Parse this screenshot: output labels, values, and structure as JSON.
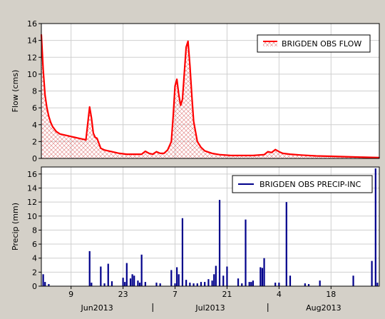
{
  "chart_data": [
    {
      "type": "area",
      "ylabel": "Flow (cms)",
      "ylim": [
        0,
        16
      ],
      "yticks": [
        0,
        2,
        4,
        6,
        8,
        10,
        12,
        14,
        16
      ],
      "legend": "top-right",
      "grid": true,
      "series": [
        {
          "name": "BRIGDEN OBS FLOW",
          "color": "#ff0000",
          "fill_pattern": "crosshatch",
          "x": [
            "2013-06-01",
            "2013-06-01T12:00",
            "2013-06-02",
            "2013-06-02T12:00",
            "2013-06-03",
            "2013-06-03T12:00",
            "2013-06-04",
            "2013-06-05",
            "2013-06-06",
            "2013-06-07",
            "2013-06-08",
            "2013-06-09",
            "2013-06-10",
            "2013-06-11",
            "2013-06-12",
            "2013-06-13",
            "2013-06-14",
            "2013-06-14T12:00",
            "2013-06-15",
            "2013-06-15T12:00",
            "2013-06-16",
            "2013-06-17",
            "2013-06-18",
            "2013-06-19",
            "2013-06-20",
            "2013-06-22",
            "2013-06-24",
            "2013-06-26",
            "2013-06-28",
            "2013-06-29",
            "2013-06-30",
            "2013-07-01",
            "2013-07-02",
            "2013-07-03",
            "2013-07-04",
            "2013-07-05",
            "2013-07-06",
            "2013-07-06T12:00",
            "2013-07-07",
            "2013-07-07T12:00",
            "2013-07-08",
            "2013-07-08T12:00",
            "2013-07-09",
            "2013-07-10",
            "2013-07-10T12:00",
            "2013-07-11",
            "2013-07-11T12:00",
            "2013-07-12",
            "2013-07-13",
            "2013-07-14",
            "2013-07-15",
            "2013-07-17",
            "2013-07-19",
            "2013-07-22",
            "2013-07-25",
            "2013-07-28",
            "2013-07-31",
            "2013-08-01",
            "2013-08-02",
            "2013-08-03",
            "2013-08-04",
            "2013-08-05",
            "2013-08-07",
            "2013-08-10",
            "2013-08-14",
            "2013-08-18",
            "2013-08-22",
            "2013-08-26",
            "2013-08-31"
          ],
          "values": [
            14.7,
            10.5,
            7.5,
            6.0,
            5.0,
            4.3,
            3.8,
            3.2,
            2.9,
            2.8,
            2.7,
            2.6,
            2.5,
            2.4,
            2.3,
            2.2,
            6.1,
            4.8,
            3.0,
            2.5,
            2.4,
            1.2,
            1.0,
            0.9,
            0.8,
            0.6,
            0.5,
            0.5,
            0.5,
            0.85,
            0.6,
            0.5,
            0.8,
            0.6,
            0.6,
            1.0,
            2.0,
            5.0,
            8.6,
            9.4,
            7.6,
            6.3,
            7.0,
            13.2,
            13.9,
            11.0,
            7.5,
            4.4,
            2.0,
            1.3,
            0.9,
            0.6,
            0.45,
            0.35,
            0.35,
            0.35,
            0.45,
            0.8,
            0.7,
            1.05,
            0.8,
            0.6,
            0.5,
            0.4,
            0.3,
            0.25,
            0.2,
            0.15,
            0.1
          ]
        }
      ]
    },
    {
      "type": "bar",
      "ylabel": "Precip (mm)",
      "ylim": [
        0,
        17
      ],
      "yticks": [
        0,
        2,
        4,
        6,
        8,
        10,
        12,
        14,
        16
      ],
      "legend": "top-right",
      "grid": true,
      "x_tick_labels": [
        "9",
        "23",
        "7",
        "21",
        "4",
        "18"
      ],
      "x_ticks": [
        "2013-06-09",
        "2013-06-23",
        "2013-07-07",
        "2013-07-21",
        "2013-08-04",
        "2013-08-18"
      ],
      "x_group_labels": [
        "Jun2013",
        "Jul2013",
        "Aug2013"
      ],
      "x_range": [
        "2013-06-01",
        "2013-08-31"
      ],
      "series": [
        {
          "name": "BRIGDEN OBS PRECIP-INC",
          "color": "#00008b",
          "x": [
            "2013-06-01T12:00",
            "2013-06-02",
            "2013-06-03",
            "2013-06-14",
            "2013-06-14T12:00",
            "2013-06-17",
            "2013-06-18",
            "2013-06-19",
            "2013-06-20",
            "2013-06-23",
            "2013-06-23T12:00",
            "2013-06-24",
            "2013-06-25",
            "2013-06-25T12:00",
            "2013-06-26",
            "2013-06-27",
            "2013-06-27T12:00",
            "2013-06-28",
            "2013-06-29",
            "2013-07-02",
            "2013-07-03",
            "2013-07-06",
            "2013-07-07",
            "2013-07-07T12:00",
            "2013-07-08",
            "2013-07-09",
            "2013-07-10",
            "2013-07-11",
            "2013-07-12",
            "2013-07-13",
            "2013-07-14",
            "2013-07-15",
            "2013-07-16",
            "2013-07-17",
            "2013-07-17T12:00",
            "2013-07-18",
            "2013-07-19",
            "2013-07-20",
            "2013-07-21",
            "2013-07-24",
            "2013-07-25",
            "2013-07-26",
            "2013-07-27",
            "2013-07-27T12:00",
            "2013-07-28",
            "2013-07-30",
            "2013-07-30T12:00",
            "2013-07-31",
            "2013-08-03",
            "2013-08-04",
            "2013-08-06",
            "2013-08-07",
            "2013-08-11",
            "2013-08-12",
            "2013-08-15",
            "2013-08-24",
            "2013-08-29",
            "2013-08-30",
            "2013-08-30T12:00"
          ],
          "values": [
            1.7,
            0.6,
            0.3,
            5.0,
            0.5,
            2.8,
            0.4,
            3.2,
            0.7,
            1.2,
            0.6,
            3.3,
            1.1,
            1.7,
            1.5,
            0.8,
            0.5,
            4.5,
            0.6,
            0.5,
            0.4,
            2.3,
            0.4,
            2.7,
            1.7,
            9.7,
            0.9,
            0.5,
            0.4,
            0.4,
            0.6,
            0.6,
            1.0,
            0.8,
            1.7,
            2.9,
            12.3,
            1.5,
            2.8,
            1.1,
            0.4,
            9.5,
            0.6,
            0.6,
            0.8,
            2.7,
            2.6,
            4.0,
            0.5,
            0.5,
            12.0,
            1.5,
            0.4,
            0.3,
            0.8,
            1.5,
            3.6,
            16.8,
            0.5
          ]
        }
      ]
    }
  ]
}
